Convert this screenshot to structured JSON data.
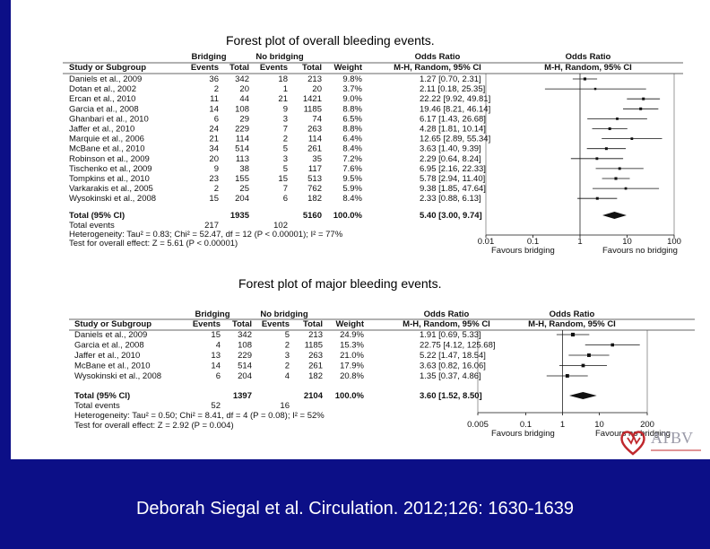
{
  "citation": "Deborah Siegal et al. Circulation. 2012;126: 1630-1639",
  "logo_text": "ATBV",
  "colors": {
    "band": "#0c0f87",
    "logo": "#c0282d"
  },
  "plots": [
    {
      "title": "Forest plot of overall bleeding events.",
      "group_headers": {
        "bridging": "Bridging",
        "no_bridging": "No bridging",
        "odds_ratio_text": "Odds Ratio",
        "odds_ratio_plot": "Odds Ratio"
      },
      "columns": {
        "study": "Study or Subgroup",
        "events": "Events",
        "total": "Total",
        "weight": "Weight",
        "ci_text": "M-H, Random, 95% CI",
        "ci_plot": "M-H, Random, 95% CI"
      },
      "rows": [
        {
          "study": "Daniels et al., 2009",
          "b_events": "36",
          "b_total": "342",
          "n_events": "18",
          "n_total": "213",
          "weight": "9.8%",
          "or_text": "1.27 [0.70, 2.31]"
        },
        {
          "study": "Dotan et al., 2002",
          "b_events": "2",
          "b_total": "20",
          "n_events": "1",
          "n_total": "20",
          "weight": "3.7%",
          "or_text": "2.11 [0.18, 25.35]"
        },
        {
          "study": "Ercan et al., 2010",
          "b_events": "11",
          "b_total": "44",
          "n_events": "21",
          "n_total": "1421",
          "weight": "9.0%",
          "or_text": "22.22 [9.92, 49.81]"
        },
        {
          "study": "Garcia et al., 2008",
          "b_events": "14",
          "b_total": "108",
          "n_events": "9",
          "n_total": "1185",
          "weight": "8.8%",
          "or_text": "19.46 [8.21, 46.14]"
        },
        {
          "study": "Ghanbari et al., 2010",
          "b_events": "6",
          "b_total": "29",
          "n_events": "3",
          "n_total": "74",
          "weight": "6.5%",
          "or_text": "6.17 [1.43, 26.68]"
        },
        {
          "study": "Jaffer et al., 2010",
          "b_events": "24",
          "b_total": "229",
          "n_events": "7",
          "n_total": "263",
          "weight": "8.8%",
          "or_text": "4.28 [1.81, 10.14]"
        },
        {
          "study": "Marquie et al., 2006",
          "b_events": "21",
          "b_total": "114",
          "n_events": "2",
          "n_total": "114",
          "weight": "6.4%",
          "or_text": "12.65 [2.89, 55.34]"
        },
        {
          "study": "McBane et al., 2010",
          "b_events": "34",
          "b_total": "514",
          "n_events": "5",
          "n_total": "261",
          "weight": "8.4%",
          "or_text": "3.63 [1.40, 9.39]"
        },
        {
          "study": "Robinson et al., 2009",
          "b_events": "20",
          "b_total": "113",
          "n_events": "3",
          "n_total": "35",
          "weight": "7.2%",
          "or_text": "2.29 [0.64, 8.24]"
        },
        {
          "study": "Tischenko et al., 2009",
          "b_events": "9",
          "b_total": "38",
          "n_events": "5",
          "n_total": "117",
          "weight": "7.6%",
          "or_text": "6.95 [2.16, 22.33]"
        },
        {
          "study": "Tompkins et al., 2010",
          "b_events": "23",
          "b_total": "155",
          "n_events": "15",
          "n_total": "513",
          "weight": "9.5%",
          "or_text": "5.78 [2.94, 11.40]"
        },
        {
          "study": "Varkarakis et al., 2005",
          "b_events": "2",
          "b_total": "25",
          "n_events": "7",
          "n_total": "762",
          "weight": "5.9%",
          "or_text": "9.38 [1.85, 47.64]"
        },
        {
          "study": "Wysokinski et al., 2008",
          "b_events": "15",
          "b_total": "204",
          "n_events": "6",
          "n_total": "182",
          "weight": "8.4%",
          "or_text": "2.33 [0.88, 6.13]"
        }
      ],
      "total_row": {
        "label": "Total (95% CI)",
        "b_total": "1935",
        "n_total": "5160",
        "weight": "100.0%",
        "or_text": "5.40 [3.00, 9.74]"
      },
      "total_events": {
        "label": "Total events",
        "b_events": "217",
        "n_events": "102"
      },
      "heterogeneity": "Heterogeneity: Tau² = 0.83; Chi² = 52.47, df = 12 (P < 0.00001); I² = 77%",
      "overall_effect": "Test for overall effect: Z = 5.61 (P < 0.00001)",
      "favours_left": "Favours bridging",
      "favours_right": "Favours no bridging"
    },
    {
      "title": "Forest plot of major bleeding events.",
      "group_headers": {
        "bridging": "Bridging",
        "no_bridging": "No bridging",
        "odds_ratio_text": "Odds Ratio",
        "odds_ratio_plot": "Odds Ratio"
      },
      "columns": {
        "study": "Study or Subgroup",
        "events": "Events",
        "total": "Total",
        "weight": "Weight",
        "ci_text": "M-H, Random, 95% CI",
        "ci_plot": "M-H, Random, 95% CI"
      },
      "rows": [
        {
          "study": "Daniels et al., 2009",
          "b_events": "15",
          "b_total": "342",
          "n_events": "5",
          "n_total": "213",
          "weight": "24.9%",
          "or_text": "1.91 [0.69, 5.33]"
        },
        {
          "study": "Garcia et al., 2008",
          "b_events": "4",
          "b_total": "108",
          "n_events": "2",
          "n_total": "1185",
          "weight": "15.3%",
          "or_text": "22.75 [4.12, 125.68]"
        },
        {
          "study": "Jaffer et al., 2010",
          "b_events": "13",
          "b_total": "229",
          "n_events": "3",
          "n_total": "263",
          "weight": "21.0%",
          "or_text": "5.22 [1.47, 18.54]"
        },
        {
          "study": "McBane et al., 2010",
          "b_events": "14",
          "b_total": "514",
          "n_events": "2",
          "n_total": "261",
          "weight": "17.9%",
          "or_text": "3.63 [0.82, 16.06]"
        },
        {
          "study": "Wysokinski et al., 2008",
          "b_events": "6",
          "b_total": "204",
          "n_events": "4",
          "n_total": "182",
          "weight": "20.8%",
          "or_text": "1.35 [0.37, 4.86]"
        }
      ],
      "total_row": {
        "label": "Total (95% CI)",
        "b_total": "1397",
        "n_total": "2104",
        "weight": "100.0%",
        "or_text": "3.60 [1.52, 8.50]"
      },
      "total_events": {
        "label": "Total events",
        "b_events": "52",
        "n_events": "16"
      },
      "heterogeneity": "Heterogeneity: Tau² = 0.50; Chi² = 8.41, df = 4 (P = 0.08); I² = 52%",
      "overall_effect": "Test for overall effect: Z = 2.92 (P = 0.004)",
      "favours_left": "Favours bridging",
      "favours_right": "Favours no bridging"
    }
  ],
  "chart_data": [
    {
      "type": "forest",
      "title": "Forest plot of overall bleeding events.",
      "x_scale": "log",
      "xlim": [
        0.01,
        100
      ],
      "ticks": [
        0.01,
        0.1,
        1,
        10,
        100
      ],
      "tick_labels": [
        "0.01",
        "0.1",
        "1",
        "10",
        "100"
      ],
      "studies": [
        {
          "name": "Daniels et al., 2009",
          "or": 1.27,
          "lo": 0.7,
          "hi": 2.31,
          "weight": 9.8
        },
        {
          "name": "Dotan et al., 2002",
          "or": 2.11,
          "lo": 0.18,
          "hi": 25.35,
          "weight": 3.7
        },
        {
          "name": "Ercan et al., 2010",
          "or": 22.22,
          "lo": 9.92,
          "hi": 49.81,
          "weight": 9.0
        },
        {
          "name": "Garcia et al., 2008",
          "or": 19.46,
          "lo": 8.21,
          "hi": 46.14,
          "weight": 8.8
        },
        {
          "name": "Ghanbari et al., 2010",
          "or": 6.17,
          "lo": 1.43,
          "hi": 26.68,
          "weight": 6.5
        },
        {
          "name": "Jaffer et al., 2010",
          "or": 4.28,
          "lo": 1.81,
          "hi": 10.14,
          "weight": 8.8
        },
        {
          "name": "Marquie et al., 2006",
          "or": 12.65,
          "lo": 2.89,
          "hi": 55.34,
          "weight": 6.4
        },
        {
          "name": "McBane et al., 2010",
          "or": 3.63,
          "lo": 1.4,
          "hi": 9.39,
          "weight": 8.4
        },
        {
          "name": "Robinson et al., 2009",
          "or": 2.29,
          "lo": 0.64,
          "hi": 8.24,
          "weight": 7.2
        },
        {
          "name": "Tischenko et al., 2009",
          "or": 6.95,
          "lo": 2.16,
          "hi": 22.33,
          "weight": 7.6
        },
        {
          "name": "Tompkins et al., 2010",
          "or": 5.78,
          "lo": 2.94,
          "hi": 11.4,
          "weight": 9.5
        },
        {
          "name": "Varkarakis et al., 2005",
          "or": 9.38,
          "lo": 1.85,
          "hi": 47.64,
          "weight": 5.9
        },
        {
          "name": "Wysokinski et al., 2008",
          "or": 2.33,
          "lo": 0.88,
          "hi": 6.13,
          "weight": 8.4
        }
      ],
      "total": {
        "or": 5.4,
        "lo": 3.0,
        "hi": 9.74
      }
    },
    {
      "type": "forest",
      "title": "Forest plot of major bleeding events.",
      "x_scale": "log",
      "xlim": [
        0.005,
        200
      ],
      "ticks": [
        0.005,
        0.1,
        1,
        10,
        200
      ],
      "tick_labels": [
        "0.005",
        "0.1",
        "1",
        "10",
        "200"
      ],
      "studies": [
        {
          "name": "Daniels et al., 2009",
          "or": 1.91,
          "lo": 0.69,
          "hi": 5.33,
          "weight": 24.9
        },
        {
          "name": "Garcia et al., 2008",
          "or": 22.75,
          "lo": 4.12,
          "hi": 125.68,
          "weight": 15.3
        },
        {
          "name": "Jaffer et al., 2010",
          "or": 5.22,
          "lo": 1.47,
          "hi": 18.54,
          "weight": 21.0
        },
        {
          "name": "McBane et al., 2010",
          "or": 3.63,
          "lo": 0.82,
          "hi": 16.06,
          "weight": 17.9
        },
        {
          "name": "Wysokinski et al., 2008",
          "or": 1.35,
          "lo": 0.37,
          "hi": 4.86,
          "weight": 20.8
        }
      ],
      "total": {
        "or": 3.6,
        "lo": 1.52,
        "hi": 8.5
      }
    }
  ]
}
